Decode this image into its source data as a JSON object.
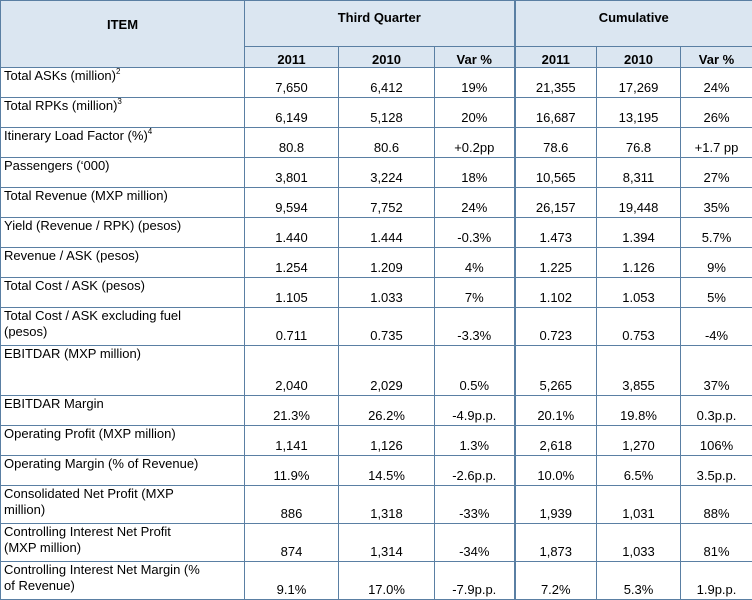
{
  "header": {
    "item": "ITEM",
    "third_quarter": "Third Quarter",
    "cumulative": "Cumulative",
    "sub": [
      "2011",
      "2010",
      "Var %",
      "2011",
      "2010",
      "Var %"
    ]
  },
  "rows": [
    {
      "label": "Total ASKs (million)",
      "sup": "2",
      "values": [
        "7,650",
        "6,412",
        "19%",
        "21,355",
        "17,269",
        "24%"
      ]
    },
    {
      "label": "Total RPKs (million)",
      "sup": "3",
      "values": [
        "6,149",
        "5,128",
        "20%",
        "16,687",
        "13,195",
        "26%"
      ]
    },
    {
      "label": "Itinerary Load Factor (%)",
      "sup": "4",
      "values": [
        "80.8",
        "80.6",
        "+0.2pp",
        "78.6",
        "76.8",
        "+1.7 pp"
      ]
    },
    {
      "label": "Passengers (‘000)",
      "values": [
        "3,801",
        "3,224",
        "18%",
        "10,565",
        "8,311",
        "27%"
      ]
    },
    {
      "label": "Total Revenue (MXP million)",
      "values": [
        "9,594",
        "7,752",
        "24%",
        "26,157",
        "19,448",
        "35%"
      ]
    },
    {
      "label": "Yield (Revenue / RPK) (pesos)",
      "values": [
        "1.440",
        "1.444",
        "-0.3%",
        "1.473",
        "1.394",
        "5.7%"
      ]
    },
    {
      "label": "Revenue / ASK (pesos)",
      "values": [
        "1.254",
        "1.209",
        "4%",
        "1.225",
        "1.126",
        "9%"
      ]
    },
    {
      "label": "Total Cost / ASK (pesos)",
      "values": [
        "1.105",
        "1.033",
        "7%",
        "1.102",
        "1.053",
        "5%"
      ]
    },
    {
      "label": "Total Cost / ASK excluding fuel",
      "label2": "(pesos)",
      "values": [
        "0.711",
        "0.735",
        "-3.3%",
        "0.723",
        "0.753",
        "-4%"
      ]
    },
    {
      "label": "EBITDAR (MXP million)",
      "values": [
        "2,040",
        "2,029",
        "0.5%",
        "5,265",
        "3,855",
        "37%"
      ]
    },
    {
      "label": "EBITDAR Margin",
      "values": [
        "21.3%",
        "26.2%",
        "-4.9p.p.",
        "20.1%",
        "19.8%",
        "0.3p.p."
      ]
    },
    {
      "label": "Operating Profit (MXP million)",
      "values": [
        "1,141",
        "1,126",
        "1.3%",
        "2,618",
        "1,270",
        "106%"
      ]
    },
    {
      "label": "Operating Margin (% of Revenue)",
      "values": [
        "11.9%",
        "14.5%",
        "-2.6p.p.",
        "10.0%",
        "6.5%",
        "3.5p.p."
      ]
    },
    {
      "label": "Consolidated Net Profit (MXP",
      "label2": "million)",
      "values": [
        "886",
        "1,318",
        "-33%",
        "1,939",
        "1,031",
        "88%"
      ]
    },
    {
      "label": "Controlling Interest Net Profit",
      "label2": "(MXP million)",
      "values": [
        "874",
        "1,314",
        "-34%",
        "1,873",
        "1,033",
        "81%"
      ]
    },
    {
      "label": "Controlling Interest Net Margin (%",
      "label2": "of Revenue)",
      "values": [
        "9.1%",
        "17.0%",
        "-7.9p.p.",
        "7.2%",
        "5.3%",
        "1.9p.p."
      ]
    }
  ]
}
